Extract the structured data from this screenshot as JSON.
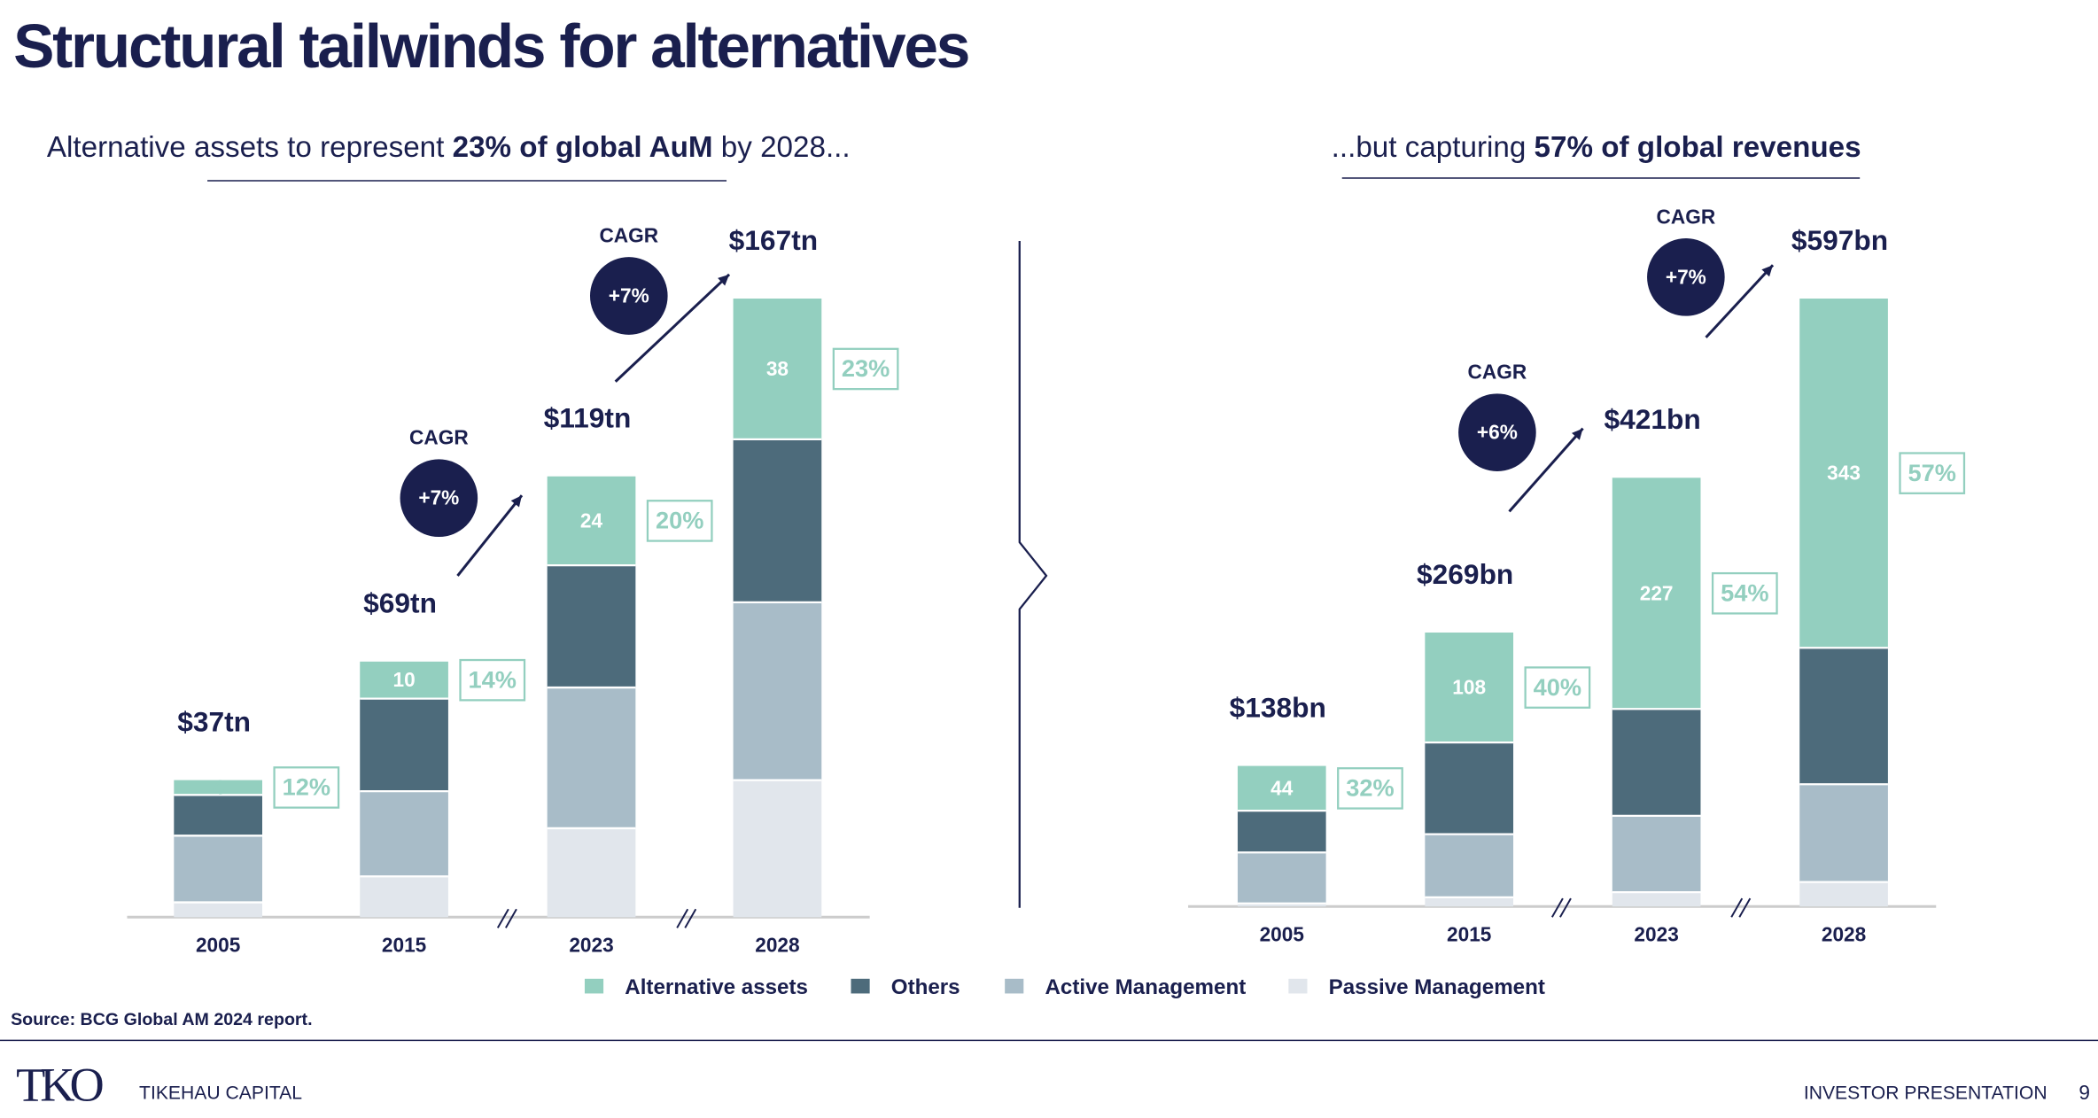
{
  "header": {
    "title": "Structural tailwinds for alternatives"
  },
  "chart_data": [
    {
      "type": "bar",
      "subtitle_parts": [
        "Alternative assets to represent ",
        "23% of global AuM",
        " by 2028..."
      ],
      "categories": [
        "2005",
        "2015",
        "2023",
        "2028"
      ],
      "series": [
        {
          "name": "Alternative assets",
          "color": "#93cfbf",
          "values": [
            4,
            10,
            24,
            38
          ]
        },
        {
          "name": "Others",
          "color": "#4d6b7b",
          "values": [
            11,
            25,
            33,
            44
          ]
        },
        {
          "name": "Active Management",
          "color": "#a8bcc8",
          "values": [
            18,
            23,
            38,
            48
          ]
        },
        {
          "name": "Passive Management",
          "color": "#e1e6ec",
          "values": [
            4,
            11,
            24,
            37
          ]
        }
      ],
      "total_labels": [
        "$37tn",
        "$69tn",
        "$119tn",
        "$167tn"
      ],
      "share_labels": [
        "12%",
        "14%",
        "20%",
        "23%"
      ],
      "cagr": [
        {
          "label": "CAGR",
          "value": "+7%"
        },
        {
          "label": "CAGR",
          "value": "+7%"
        }
      ]
    },
    {
      "type": "bar",
      "subtitle_parts": [
        "...but capturing ",
        "57% of global revenues"
      ],
      "categories": [
        "2005",
        "2015",
        "2023",
        "2028"
      ],
      "series": [
        {
          "color": "#93cfbf",
          "values": [
            44,
            108,
            227,
            343
          ]
        },
        {
          "color": "#4d6b7b",
          "values": [
            41,
            90,
            105,
            134
          ]
        },
        {
          "color": "#a8bcc8",
          "values": [
            50,
            62,
            75,
            96
          ]
        },
        {
          "color": "#e1e6ec",
          "values": [
            3,
            9,
            14,
            24
          ]
        }
      ],
      "total_labels": [
        "$138bn",
        "$269bn",
        "$421bn",
        "$597bn"
      ],
      "share_labels": [
        "32%",
        "40%",
        "54%",
        "57%"
      ],
      "cagr": [
        {
          "label": "CAGR",
          "value": "+6%"
        },
        {
          "label": "CAGR",
          "value": "+7%"
        }
      ]
    }
  ],
  "source": "Source: BCG Global AM 2024 report.",
  "footer": {
    "logo": "TKO",
    "company": "TIKEHAU CAPITAL",
    "right": "INVESTOR PRESENTATION",
    "page": "9"
  }
}
